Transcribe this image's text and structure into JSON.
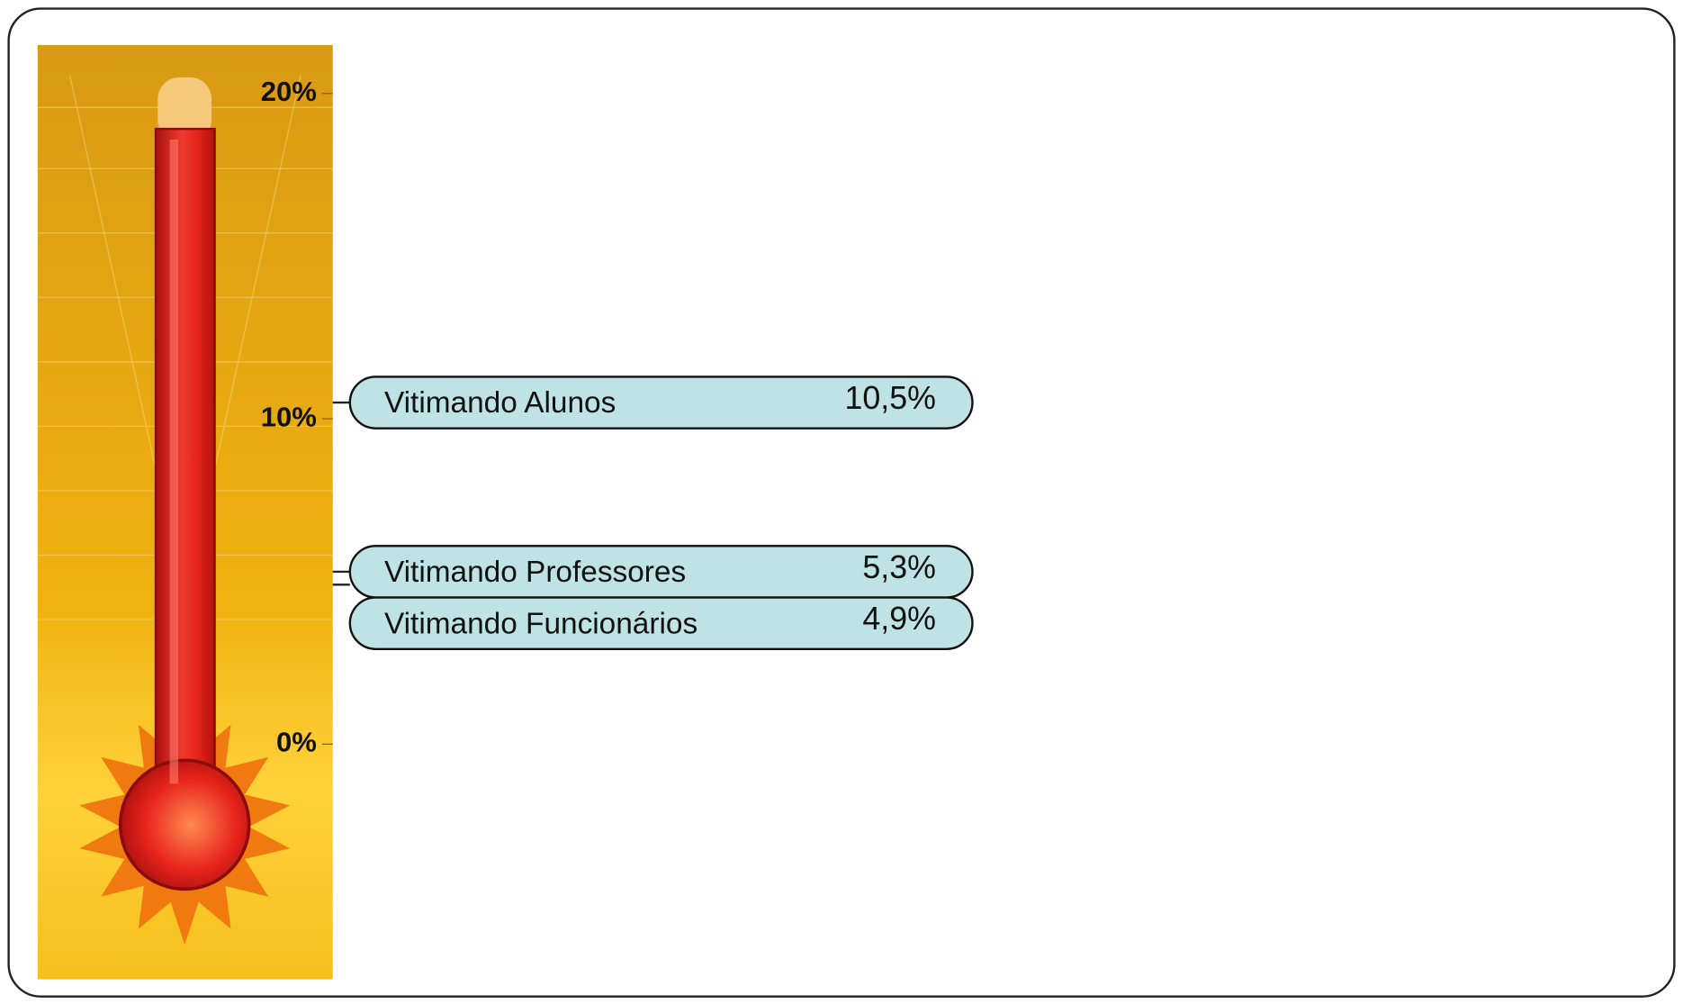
{
  "chart_data": {
    "type": "thermometer",
    "categories": [
      "Vitimando Alunos",
      "Vitimando Professores",
      "Vitimando Funcionários"
    ],
    "values": [
      10.5,
      5.3,
      4.9
    ],
    "value_labels": [
      "10,5%",
      "5,3%",
      "4,9%"
    ],
    "color": "#bfe3e5",
    "ylim": [
      0,
      20
    ],
    "yticks": [
      {
        "value": 0,
        "label": "0%"
      },
      {
        "value": 10,
        "label": "10%"
      },
      {
        "value": 20,
        "label": "20%"
      }
    ]
  }
}
